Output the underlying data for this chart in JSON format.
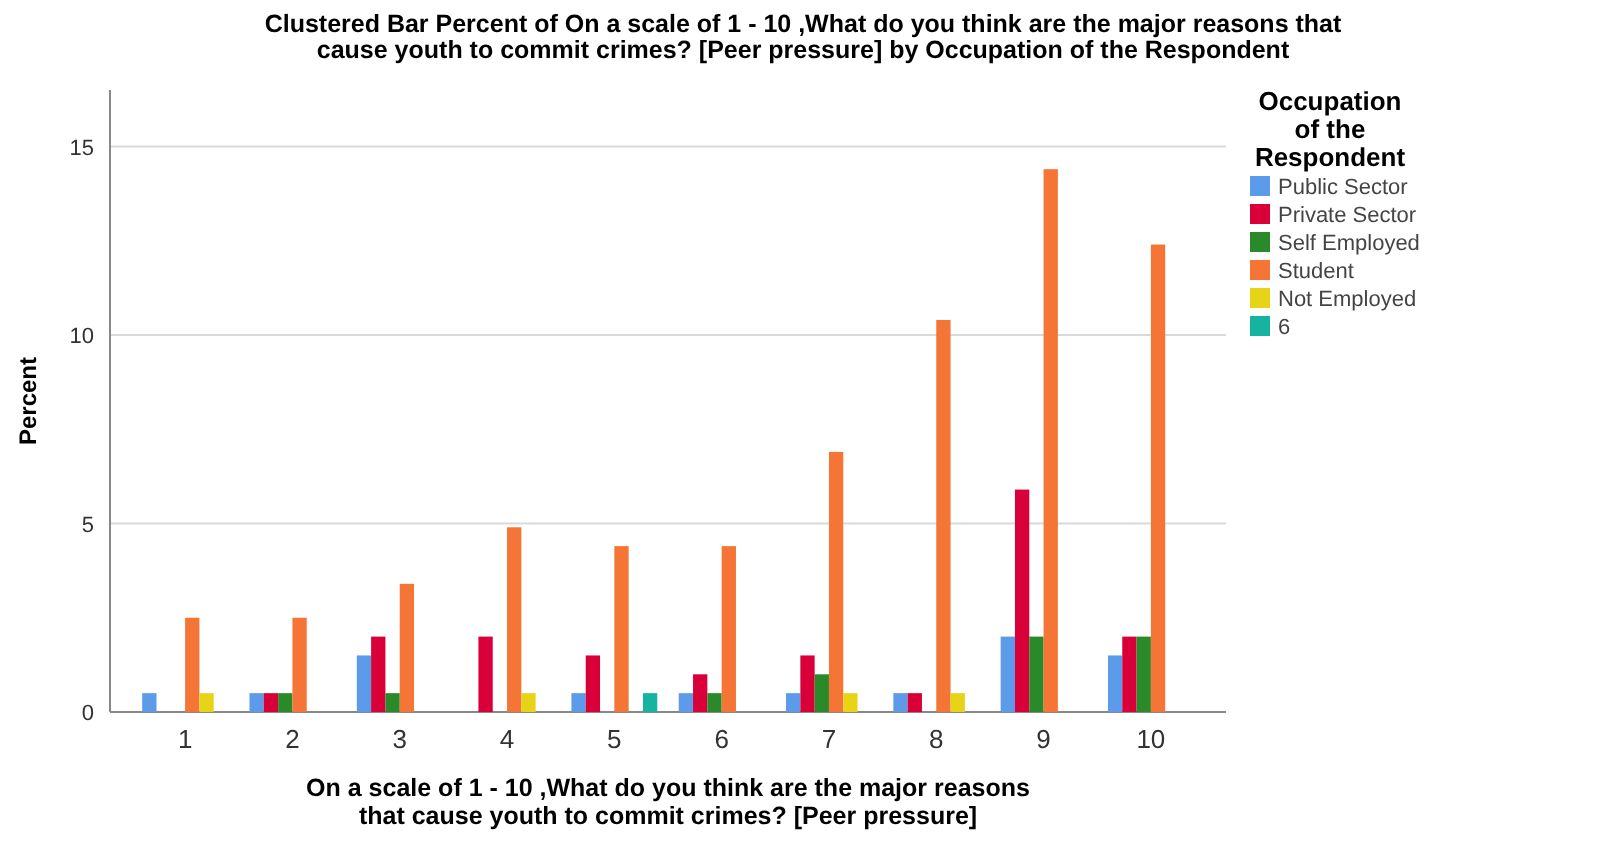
{
  "chart_data": {
    "type": "bar",
    "title": "Clustered Bar Percent of On a scale of 1 - 10 ,What do you think are the major reasons that cause youth to commit crimes?  [Peer pressure] by Occupation of the Respondent",
    "xlabel": "On a scale of 1 - 10 ,What do you think are the major reasons that cause youth to commit crimes?  [Peer pressure]",
    "ylabel": "Percent",
    "legend_title": "Occupation of the Respondent",
    "categories": [
      "1",
      "2",
      "3",
      "4",
      "5",
      "6",
      "7",
      "8",
      "9",
      "10"
    ],
    "series": [
      {
        "name": "Public Sector",
        "color": "#5b9bea",
        "values": [
          0.5,
          0.5,
          1.5,
          null,
          0.5,
          0.5,
          0.5,
          0.5,
          2,
          1.5
        ]
      },
      {
        "name": "Private Sector",
        "color": "#d9003a",
        "values": [
          null,
          0.5,
          2,
          2,
          1.5,
          1,
          1.5,
          0.5,
          5.9,
          2
        ]
      },
      {
        "name": "Self Employed",
        "color": "#2a8a2a",
        "values": [
          null,
          0.5,
          0.5,
          null,
          null,
          0.5,
          1,
          null,
          2,
          2
        ]
      },
      {
        "name": "Student",
        "color": "#f47536",
        "values": [
          2.5,
          2.5,
          3.4,
          4.9,
          4.4,
          4.4,
          6.9,
          10.4,
          14.4,
          12.4
        ]
      },
      {
        "name": "Not Employed",
        "color": "#e8d416",
        "values": [
          0.5,
          null,
          null,
          0.5,
          null,
          null,
          0.5,
          0.5,
          null,
          null
        ]
      },
      {
        "name": "6",
        "color": "#16b3a0",
        "values": [
          null,
          null,
          null,
          null,
          0.5,
          null,
          null,
          null,
          null,
          null
        ]
      }
    ],
    "ylim": [
      0,
      16.5
    ],
    "yticks": [
      0,
      5,
      10,
      15
    ],
    "grid": "y",
    "legend": "right"
  }
}
